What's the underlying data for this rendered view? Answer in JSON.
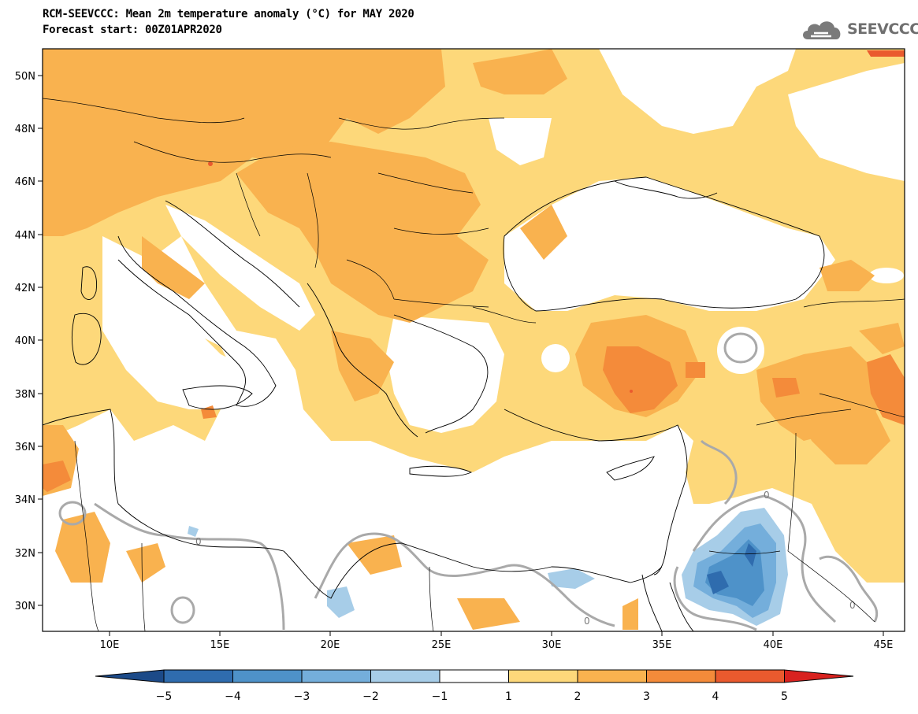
{
  "title": {
    "line1": "RCM-SEEVCCC: Mean 2m temperature anomaly (°C) for MAY 2020",
    "line2": "Forecast start: 00Z01APR2020"
  },
  "logo": {
    "text": "SEEVCCC",
    "icon": "cloud-icon"
  },
  "map": {
    "lat_labels": [
      "50N",
      "48N",
      "46N",
      "44N",
      "42N",
      "40N",
      "38N",
      "36N",
      "34N",
      "32N",
      "30N"
    ],
    "lon_labels": [
      "10E",
      "15E",
      "20E",
      "25E",
      "30E",
      "35E",
      "40E",
      "45E"
    ],
    "contour_label": "0",
    "region": {
      "lon_range": [
        7,
        45.5
      ],
      "lat_range": [
        29,
        51
      ]
    }
  },
  "colorbar": {
    "ticks": [
      "−5",
      "−4",
      "−3",
      "−2",
      "−1",
      "1",
      "2",
      "3",
      "4",
      "5"
    ],
    "colors": [
      "#1c4a88",
      "#2f6cae",
      "#4e92c9",
      "#74aedb",
      "#a7cde8",
      "#ffffff",
      "#fdd87a",
      "#f9b24f",
      "#f48b3a",
      "#ea5a2e",
      "#d8221f"
    ]
  }
}
